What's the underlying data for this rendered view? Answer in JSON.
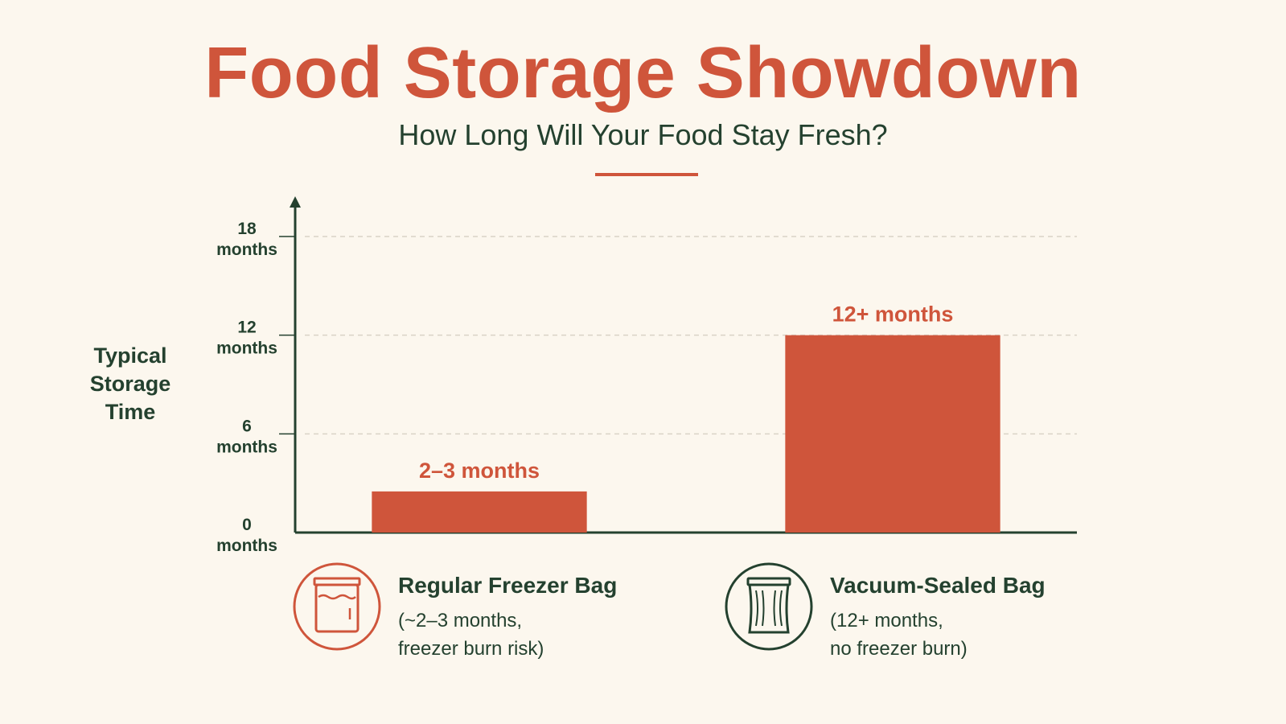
{
  "title": "Food Storage Showdown",
  "subtitle": "How Long Will Your Food Stay Fresh?",
  "colors": {
    "accent": "#cf553b",
    "dark": "#24412f",
    "background": "#fcf7ee",
    "grid": "#d9d3c6"
  },
  "chart_data": {
    "type": "bar",
    "ylabel": "Typical Storage Time",
    "ylim": [
      0,
      18
    ],
    "yticks": [
      {
        "value": 0,
        "line1": "0",
        "line2": "months"
      },
      {
        "value": 6,
        "line1": "6",
        "line2": "months"
      },
      {
        "value": 12,
        "line1": "12",
        "line2": "months"
      },
      {
        "value": 18,
        "line1": "18",
        "line2": "months"
      }
    ],
    "grid": "horizontal dashed",
    "categories": [
      "Regular Freezer Bag",
      "Vacuum-Sealed Bag"
    ],
    "values": [
      2.5,
      12
    ],
    "data_labels": [
      "2–3 months",
      "12+ months"
    ]
  },
  "legend": [
    {
      "name": "Regular Freezer Bag",
      "note_line1": "(~2–3 months,",
      "note_line2": "freezer burn risk)",
      "icon": "freezer-bag-icon"
    },
    {
      "name": "Vacuum-Sealed Bag",
      "note_line1": "(12+ months,",
      "note_line2": "no freezer burn)",
      "icon": "vacuum-bag-icon"
    }
  ]
}
